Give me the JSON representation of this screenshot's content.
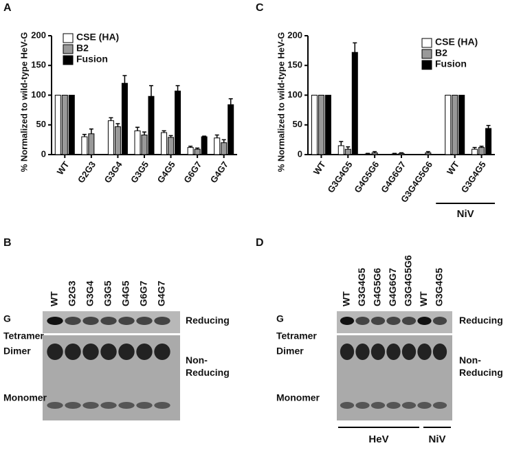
{
  "chart_data": [
    {
      "type": "bar",
      "panel": "A",
      "ylabel": "% Normalized to wild-type HeV-G",
      "categories": [
        "WT",
        "G2G3",
        "G3G4",
        "G3G5",
        "G4G5",
        "G6G7",
        "G4G7"
      ],
      "ylim": [
        0,
        200
      ],
      "yticks": [
        0,
        50,
        100,
        150,
        200
      ],
      "series": [
        {
          "name": "CSE (HA)",
          "color": "#ffffff",
          "values": [
            100,
            30,
            57,
            40,
            37,
            12,
            28
          ],
          "errors": [
            0,
            4,
            5,
            6,
            3,
            2,
            5
          ]
        },
        {
          "name": "B2",
          "color": "#999999",
          "values": [
            100,
            35,
            47,
            33,
            29,
            9,
            20
          ],
          "errors": [
            0,
            8,
            5,
            5,
            3,
            2,
            5
          ]
        },
        {
          "name": "Fusion",
          "color": "#000000",
          "values": [
            100,
            null,
            120,
            98,
            107,
            30,
            84
          ],
          "errors": [
            0,
            null,
            13,
            18,
            9,
            1,
            10
          ]
        }
      ]
    },
    {
      "type": "bar",
      "panel": "C",
      "ylabel": "% Normalized to wild-type HeV-G",
      "categories": [
        "WT",
        "G3G4G5",
        "G4G5G6",
        "G4G6G7",
        "G3G4G5G6",
        "WT",
        "G3G4G5"
      ],
      "annotation": "NiV",
      "ylim": [
        0,
        200
      ],
      "yticks": [
        0,
        50,
        100,
        150,
        200
      ],
      "series": [
        {
          "name": "CSE (HA)",
          "color": "#ffffff",
          "values": [
            100,
            15,
            1,
            1,
            0,
            100,
            9
          ],
          "errors": [
            0,
            7,
            1,
            1,
            0,
            0,
            3
          ]
        },
        {
          "name": "B2",
          "color": "#999999",
          "values": [
            100,
            9,
            3,
            2,
            3,
            100,
            12
          ],
          "errors": [
            0,
            4,
            2,
            1,
            2,
            0,
            2
          ]
        },
        {
          "name": "Fusion",
          "color": "#000000",
          "values": [
            100,
            172,
            0,
            0,
            0,
            100,
            44
          ],
          "errors": [
            0,
            16,
            0,
            0,
            0,
            0,
            5
          ]
        }
      ]
    }
  ],
  "blots": [
    {
      "panel": "B",
      "lanes": [
        "WT",
        "G2G3",
        "G3G4",
        "G3G5",
        "G4G5",
        "G6G7",
        "G4G7"
      ],
      "left_labels": [
        "G",
        "Tetramer",
        "Dimer",
        "Monomer"
      ],
      "right_labels": [
        "Reducing",
        "Non-\nReducing"
      ]
    },
    {
      "panel": "D",
      "lanes": [
        "WT",
        "G3G4G5",
        "G4G5G6",
        "G4G6G7",
        "G3G4G5G6",
        "WT",
        "G3G4G5"
      ],
      "left_labels": [
        "G",
        "Tetramer",
        "Dimer",
        "Monomer"
      ],
      "right_labels": [
        "Reducing",
        "Non-\nReducing"
      ],
      "groups": [
        "HeV",
        "NiV"
      ]
    }
  ]
}
